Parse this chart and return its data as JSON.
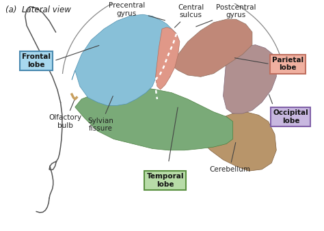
{
  "title": "(a)  Lateral view",
  "bg_color": "#ffffff",
  "labels": {
    "frontal_lobe": "Frontal\nlobe",
    "parietal_lobe": "Parietal\nlobe",
    "occipital_lobe": "Occipital\nlobe",
    "temporal_lobe": "Temporal\nlobe",
    "precentral_gyrus": "Precentral\ngyrus",
    "central_sulcus": "Central\nsulcus",
    "postcentral_gyrus": "Postcentral\ngyrus",
    "olfactory_bulb": "Olfactory\nbulb",
    "sylvian_fissure": "Sylvian\nfissure",
    "cerebellum": "Cerebellum"
  },
  "box_colors": {
    "frontal_lobe": {
      "face": "#a8d8ee",
      "edge": "#4a8ab0"
    },
    "parietal_lobe": {
      "face": "#f0b0a0",
      "edge": "#c07060"
    },
    "occipital_lobe": {
      "face": "#c8b8e0",
      "edge": "#8060a8"
    },
    "temporal_lobe": {
      "face": "#b8dca8",
      "edge": "#5a9040"
    }
  },
  "lobe_colors": {
    "frontal": "#88c0d8",
    "precentral": "#e09888",
    "parietal": "#c08878",
    "occipital": "#b09090",
    "temporal": "#7aaa78",
    "cerebellum": "#b8956a"
  },
  "annotation_color": "#222222",
  "line_color": "#444444"
}
